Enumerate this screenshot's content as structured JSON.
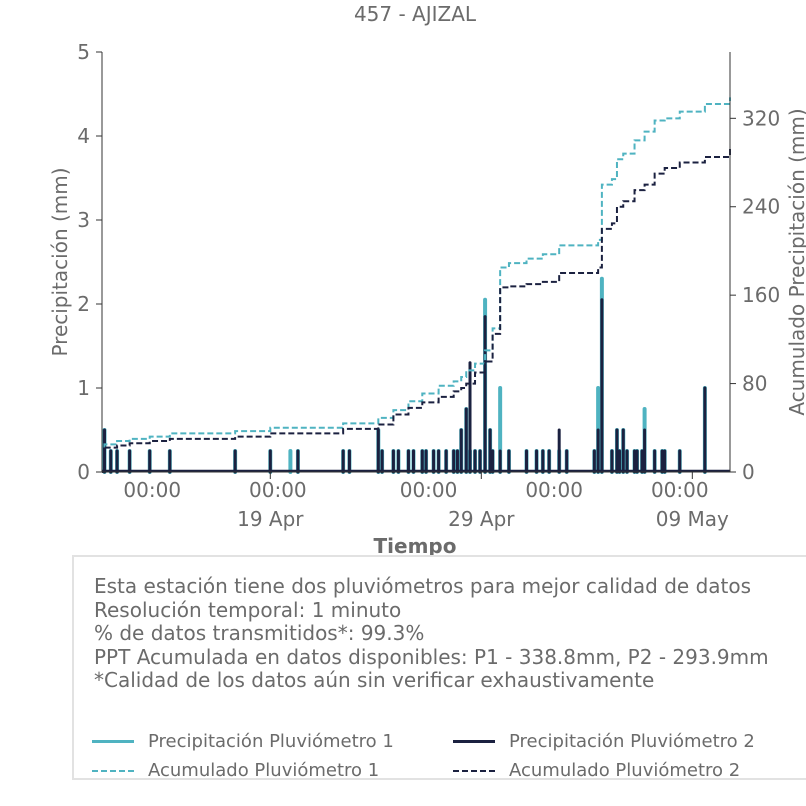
{
  "chart_data": {
    "type": "bar",
    "title": "457 - AJIZAL",
    "xlabel": "Tiempo",
    "ylabel": "Precipitación (mm)",
    "ylabel_right": "Acumulado Precipitación (mm)",
    "ylim": [
      0,
      5
    ],
    "ylim_right": [
      0,
      380
    ],
    "yticks": [
      0,
      1,
      2,
      3,
      4,
      5
    ],
    "yticks_right": [
      0,
      80,
      160,
      240,
      320
    ],
    "xlim": [
      0,
      25
    ],
    "x_unit": "days since 2023-04-12 00:00",
    "xtick_labels_minor": [
      "00:00",
      "00:00",
      "00:00",
      "00:00",
      "00:00"
    ],
    "xtick_labels_minor_x": [
      2,
      7,
      13,
      18,
      23
    ],
    "xtick_labels_major": [
      "19 Apr",
      "29 Apr",
      "09 May"
    ],
    "xtick_labels_major_x": [
      6.7,
      15.1,
      23.5
    ],
    "grid": false,
    "legend_position": "bottom",
    "colors": {
      "p1": "#4fb3c1",
      "p2": "#1b2140",
      "text": "#6b6b6b",
      "axis": "#333333"
    },
    "series": [
      {
        "name": "Precipitación Pluviómetro 1",
        "style": "bars",
        "x": [
          0.1,
          0.35,
          0.6,
          1.1,
          1.9,
          2.7,
          5.3,
          6.7,
          7.5,
          7.8,
          9.6,
          9.85,
          11.0,
          11.15,
          11.6,
          11.8,
          12.2,
          12.4,
          12.75,
          12.9,
          13.2,
          13.4,
          13.7,
          14.0,
          14.15,
          14.3,
          14.5,
          14.65,
          14.85,
          15.05,
          15.25,
          15.45,
          15.55,
          15.85,
          16.2,
          16.9,
          17.3,
          17.55,
          17.8,
          18.2,
          18.5,
          19.6,
          19.75,
          19.9,
          20.3,
          20.5,
          20.6,
          20.75,
          20.9,
          21.2,
          21.3,
          21.5,
          21.6,
          22.0,
          22.3,
          22.4,
          23.0,
          24.0
        ],
        "values": [
          0.5,
          0.25,
          0.25,
          0.25,
          0.25,
          0.25,
          0.25,
          0.25,
          0.25,
          0.25,
          0.25,
          0.25,
          0.5,
          0.25,
          0.25,
          0.25,
          0.25,
          0.25,
          0.25,
          0.25,
          0.25,
          0.25,
          0.25,
          0.25,
          0.25,
          0.5,
          0.75,
          0.25,
          0.25,
          0.25,
          2.05,
          0.5,
          0.25,
          1.0,
          0.25,
          0.25,
          0.25,
          0.25,
          0.25,
          0.25,
          0.25,
          0.25,
          1.0,
          2.3,
          0.25,
          0.5,
          0.25,
          0.5,
          0.25,
          0.25,
          0.25,
          0.25,
          0.75,
          0.25,
          0.25,
          0.25,
          0.25,
          1.0
        ]
      },
      {
        "name": "Precipitación Pluviómetro 2",
        "style": "bars",
        "x": [
          0.1,
          0.35,
          0.6,
          1.1,
          1.9,
          2.7,
          5.3,
          6.7,
          7.8,
          9.6,
          9.85,
          11.0,
          11.15,
          11.6,
          11.8,
          12.2,
          12.4,
          12.75,
          12.9,
          13.2,
          13.4,
          13.7,
          14.0,
          14.15,
          14.3,
          14.5,
          14.65,
          14.85,
          15.05,
          15.25,
          15.45,
          15.55,
          15.85,
          16.2,
          16.9,
          17.3,
          17.55,
          17.8,
          18.2,
          18.5,
          19.6,
          19.75,
          19.9,
          20.3,
          20.5,
          20.6,
          20.75,
          20.9,
          21.2,
          21.3,
          21.5,
          21.6,
          22.0,
          22.3,
          22.4,
          23.0,
          24.0
        ],
        "values": [
          0.5,
          0.25,
          0.25,
          0.25,
          0.25,
          0.25,
          0.25,
          0.25,
          0.25,
          0.25,
          0.25,
          0.5,
          0.25,
          0.25,
          0.25,
          0.25,
          0.25,
          0.25,
          0.25,
          0.25,
          0.25,
          0.25,
          0.25,
          0.25,
          0.5,
          0.75,
          1.3,
          0.25,
          0.25,
          1.85,
          0.5,
          0.25,
          0.25,
          0.25,
          0.25,
          0.25,
          0.25,
          0.25,
          0.5,
          0.25,
          0.25,
          0.5,
          2.05,
          0.25,
          0.5,
          0.25,
          0.5,
          0.25,
          0.25,
          0.25,
          0.25,
          0.5,
          0.25,
          0.25,
          0.25,
          0.25,
          1.0
        ]
      },
      {
        "name": "Acumulado Pluviómetro 1",
        "style": "dashed-step",
        "axis": "right",
        "x": [
          0.0,
          0.1,
          0.6,
          1.1,
          1.9,
          2.7,
          5.3,
          6.7,
          9.6,
          11.0,
          11.6,
          12.2,
          12.75,
          13.4,
          14.0,
          14.3,
          14.5,
          14.85,
          15.25,
          15.55,
          15.85,
          16.2,
          16.9,
          17.55,
          18.2,
          19.75,
          19.9,
          20.3,
          20.5,
          20.75,
          21.2,
          21.6,
          22.0,
          22.4,
          23.0,
          24.0,
          25.0
        ],
        "values": [
          0,
          25,
          28,
          30,
          32,
          35,
          37,
          40,
          44,
          49,
          56,
          64,
          71,
          78,
          82,
          86,
          92,
          98,
          110,
          130,
          185,
          189,
          193,
          197,
          205,
          210,
          260,
          265,
          283,
          288,
          300,
          308,
          318,
          320,
          326,
          333,
          339
        ]
      },
      {
        "name": "Acumulado Pluviómetro 2",
        "style": "dashed-step",
        "axis": "right",
        "x": [
          0.0,
          0.1,
          0.6,
          1.1,
          1.9,
          2.7,
          5.3,
          6.7,
          9.6,
          11.0,
          11.6,
          12.2,
          12.75,
          13.4,
          14.0,
          14.3,
          14.5,
          14.85,
          15.25,
          15.55,
          15.85,
          16.2,
          16.9,
          17.55,
          18.2,
          19.75,
          19.9,
          20.3,
          20.5,
          20.75,
          21.2,
          21.6,
          22.0,
          22.4,
          23.0,
          24.0,
          25.0
        ],
        "values": [
          0,
          22,
          24,
          26,
          28,
          30,
          32,
          35,
          39,
          43,
          52,
          58,
          63,
          68,
          73,
          76,
          80,
          90,
          100,
          125,
          167,
          168,
          170,
          172,
          180,
          185,
          220,
          225,
          240,
          245,
          255,
          260,
          270,
          275,
          280,
          285,
          294
        ]
      }
    ]
  },
  "info": {
    "lines": [
      "Esta estación tiene dos pluviómetros para mejor calidad de datos",
      "Resolución temporal: 1 minuto",
      "% de datos transmitidos*: 99.3%",
      "PPT Acumulada en datos disponibles: P1 - 338.8mm, P2 - 293.9mm",
      "*Calidad de los datos aún sin verificar exhaustivamente"
    ]
  },
  "legend": {
    "items": [
      {
        "label": "Precipitación Pluviómetro 1",
        "color": "#4fb3c1",
        "style": "solid"
      },
      {
        "label": "Precipitación Pluviómetro 2",
        "color": "#1b2140",
        "style": "solid"
      },
      {
        "label": "Acumulado Pluviómetro 1",
        "color": "#4fb3c1",
        "style": "dashed"
      },
      {
        "label": "Acumulado Pluviómetro 2",
        "color": "#1b2140",
        "style": "dashed"
      }
    ]
  }
}
